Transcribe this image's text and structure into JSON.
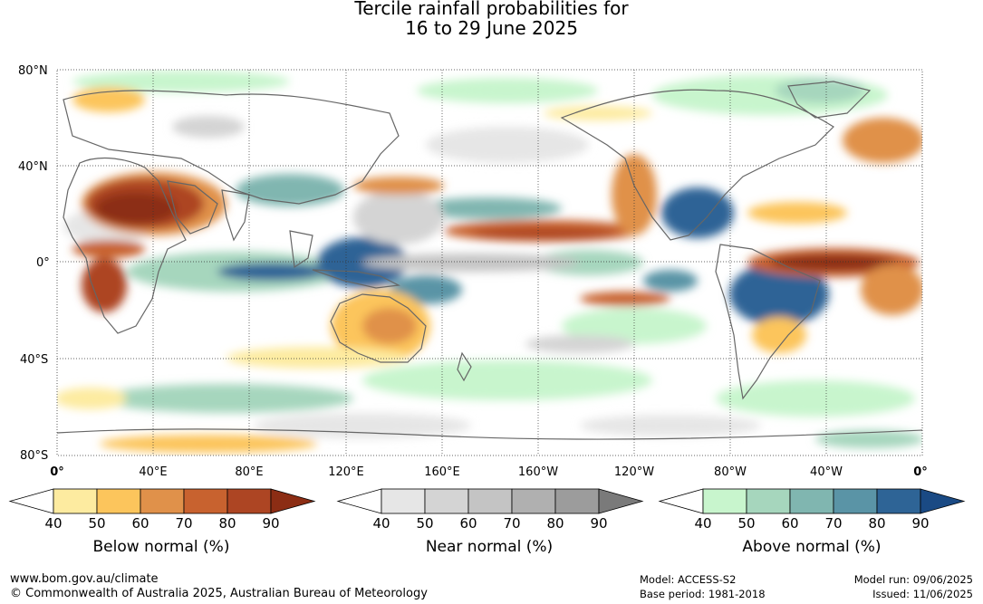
{
  "title": {
    "line1": "Tercile rainfall probabilities for",
    "line2": "16 to 29 June 2025"
  },
  "axes": {
    "lat_labels": [
      "80°N",
      "40°N",
      "0°",
      "40°S",
      "80°S"
    ],
    "lon_labels": [
      "0°",
      "40°E",
      "80°E",
      "120°E",
      "160°E",
      "160°W",
      "120°W",
      "80°W",
      "40°W",
      "0°"
    ]
  },
  "legends": [
    {
      "title": "Below normal (%)",
      "ticks": [
        "40",
        "50",
        "60",
        "70",
        "80",
        "90"
      ],
      "colors": [
        "#ffffff",
        "#fdeba0",
        "#fcc55c",
        "#e0914a",
        "#c8622f",
        "#ad4523",
        "#8c2d14"
      ]
    },
    {
      "title": "Near normal (%)",
      "ticks": [
        "40",
        "50",
        "60",
        "70",
        "80",
        "90"
      ],
      "colors": [
        "#ffffff",
        "#e6e6e6",
        "#d4d4d4",
        "#c4c4c4",
        "#b0b0b0",
        "#9c9c9c",
        "#7a7a7a"
      ]
    },
    {
      "title": "Above normal (%)",
      "ticks": [
        "40",
        "50",
        "60",
        "70",
        "80",
        "90"
      ],
      "colors": [
        "#ffffff",
        "#c8f5cd",
        "#a6d6bd",
        "#80b6b0",
        "#5a94a6",
        "#2e6496",
        "#1a4a84"
      ]
    }
  ],
  "footer": {
    "url": "www.bom.gov.au/climate",
    "copyright": "© Commonwealth of Australia 2025, Australian Bureau of Meteorology",
    "model": "Model: ACCESS-S2",
    "base_period": "Base period: 1981-2018",
    "model_run": "Model run: 09/06/2025",
    "issued": "Issued: 11/06/2025"
  }
}
